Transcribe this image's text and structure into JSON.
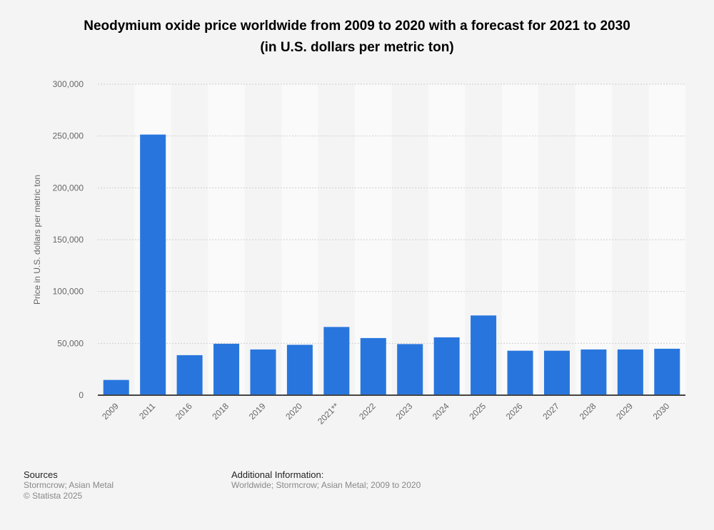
{
  "chart_data": {
    "type": "bar",
    "title": "Neodymium oxide price worldwide from 2009 to 2020 with a forecast for 2021 to 2030",
    "subtitle": "(in U.S. dollars per metric ton)",
    "xlabel": "",
    "ylabel": "Price in U.S. dollars per metric ton",
    "categories": [
      "2009",
      "2011",
      "2016",
      "2018",
      "2019",
      "2020",
      "2021**",
      "2022",
      "2023",
      "2024",
      "2025",
      "2026",
      "2027",
      "2028",
      "2029",
      "2030"
    ],
    "values": [
      14700,
      251400,
      38600,
      49600,
      44100,
      48600,
      65800,
      55100,
      49300,
      55800,
      76900,
      42900,
      42900,
      44100,
      44100,
      44800
    ],
    "ylim": [
      0,
      300000
    ],
    "yticks": [
      "0",
      "50,000",
      "100,000",
      "150,000",
      "200,000",
      "250,000",
      "300,000"
    ],
    "grid": true,
    "bar_color": "#2876dd"
  },
  "footer": {
    "sources_heading": "Sources",
    "sources": "Stormcrow; Asian Metal",
    "copyright": "© Statista 2025",
    "info_heading": "Additional Information:",
    "info": "Worldwide; Stormcrow; Asian Metal; 2009 to 2020"
  }
}
